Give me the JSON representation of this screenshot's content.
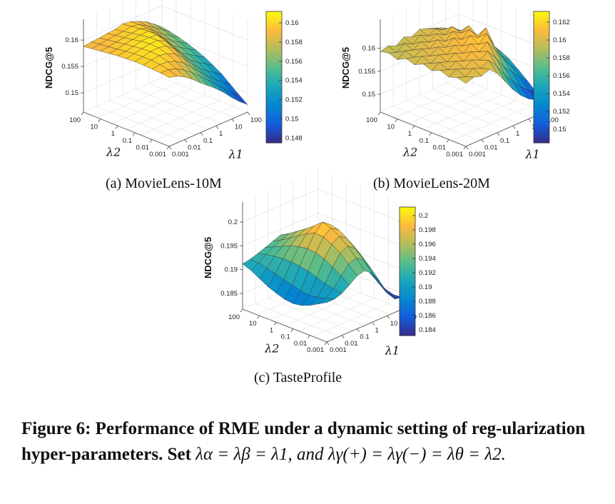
{
  "figure": {
    "caption_prefix": "Figure 6: Performance of RME under a dynamic setting of reg-ularization hyper-parameters. Set",
    "caption_math": "λα = λβ = λ1, and λγ(+) = λγ(−) = λθ = λ2."
  },
  "chart_data": [
    {
      "type": "surface",
      "subcaption": "(a)  MovieLens-10M",
      "zlabel": "NDCG@5",
      "xlabel": "λ1",
      "ylabel": "λ2",
      "x_ticks": [
        "0.001",
        "0.01",
        "0.1",
        "1",
        "10",
        "100"
      ],
      "y_ticks": [
        "100",
        "10",
        "1",
        "0.1",
        "0.01",
        "0.001"
      ],
      "z_ticks": [
        "0.15",
        "0.155",
        "0.16"
      ],
      "zlim": [
        0.148,
        0.1615
      ],
      "colorbar_ticks": [
        "0.148",
        "0.15",
        "0.152",
        "0.154",
        "0.156",
        "0.158",
        "0.16"
      ],
      "colorbar_range": [
        0.1475,
        0.1612
      ],
      "z_grid": [
        [
          0.1588,
          0.159,
          0.1591,
          0.1593,
          0.1594,
          0.1598,
          0.1596,
          0.159,
          0.1583,
          0.1572,
          0.156
        ],
        [
          0.159,
          0.1592,
          0.1594,
          0.1596,
          0.1597,
          0.16,
          0.1597,
          0.1588,
          0.1578,
          0.1568,
          0.1557
        ],
        [
          0.1592,
          0.1594,
          0.1596,
          0.1598,
          0.16,
          0.1602,
          0.1596,
          0.1584,
          0.1572,
          0.1563,
          0.1553
        ],
        [
          0.1594,
          0.1596,
          0.1599,
          0.1601,
          0.1603,
          0.1604,
          0.1593,
          0.1578,
          0.1566,
          0.1557,
          0.1548
        ],
        [
          0.1596,
          0.1598,
          0.1601,
          0.1604,
          0.1605,
          0.1603,
          0.1588,
          0.157,
          0.156,
          0.1551,
          0.1542
        ],
        [
          0.1597,
          0.16,
          0.1603,
          0.1606,
          0.1606,
          0.1598,
          0.158,
          0.1563,
          0.1553,
          0.1544,
          0.1535
        ],
        [
          0.1598,
          0.1601,
          0.1604,
          0.1605,
          0.1602,
          0.159,
          0.1572,
          0.1556,
          0.1545,
          0.1536,
          0.1526
        ],
        [
          0.1598,
          0.1601,
          0.1603,
          0.16,
          0.1594,
          0.158,
          0.1563,
          0.1548,
          0.1536,
          0.1526,
          0.1516
        ],
        [
          0.1597,
          0.1599,
          0.1598,
          0.1592,
          0.1583,
          0.1569,
          0.1554,
          0.1539,
          0.1526,
          0.1515,
          0.1503
        ],
        [
          0.1596,
          0.1596,
          0.1591,
          0.1582,
          0.1571,
          0.1558,
          0.1544,
          0.153,
          0.1515,
          0.1502,
          0.149
        ],
        [
          0.1594,
          0.159,
          0.1582,
          0.1571,
          0.1558,
          0.1546,
          0.1534,
          0.152,
          0.1504,
          0.149,
          0.1478
        ]
      ]
    },
    {
      "type": "surface",
      "subcaption": "(b)  MovieLens-20M",
      "zlabel": "NDCG@5",
      "xlabel": "λ1",
      "ylabel": "λ2",
      "x_ticks": [
        "0.001",
        "0.01",
        "0.1",
        "1",
        "10",
        "100"
      ],
      "y_ticks": [
        "100",
        "10",
        "1",
        "0.1",
        "0.01",
        "0.001"
      ],
      "z_ticks": [
        "0.15",
        "0.155",
        "0.16"
      ],
      "zlim": [
        0.148,
        0.1635
      ],
      "colorbar_ticks": [
        "0.15",
        "0.152",
        "0.154",
        "0.156",
        "0.158",
        "0.16",
        "0.162"
      ],
      "colorbar_range": [
        0.1485,
        0.1632
      ],
      "z_grid": [
        [
          0.1593,
          0.1598,
          0.159,
          0.1602,
          0.1595,
          0.1604,
          0.1598,
          0.1592,
          0.1585,
          0.1575,
          0.1566
        ],
        [
          0.1597,
          0.1591,
          0.1603,
          0.1594,
          0.1606,
          0.1597,
          0.1605,
          0.1595,
          0.1588,
          0.1577,
          0.1567
        ],
        [
          0.159,
          0.1602,
          0.1596,
          0.1607,
          0.1598,
          0.1609,
          0.1599,
          0.161,
          0.1592,
          0.158,
          0.1568
        ],
        [
          0.16,
          0.1595,
          0.1606,
          0.1599,
          0.1611,
          0.16,
          0.1614,
          0.1603,
          0.1612,
          0.1583,
          0.157
        ],
        [
          0.1594,
          0.1605,
          0.1598,
          0.161,
          0.1602,
          0.1615,
          0.1604,
          0.1618,
          0.1598,
          0.1578,
          0.1562
        ],
        [
          0.1603,
          0.1597,
          0.1608,
          0.1601,
          0.1614,
          0.1605,
          0.162,
          0.1608,
          0.1622,
          0.1572,
          0.1555
        ],
        [
          0.1596,
          0.1606,
          0.16,
          0.1612,
          0.1604,
          0.1617,
          0.1608,
          0.1625,
          0.159,
          0.156,
          0.1545
        ],
        [
          0.1604,
          0.1598,
          0.1609,
          0.1602,
          0.1615,
          0.1607,
          0.1621,
          0.1597,
          0.157,
          0.1548,
          0.153
        ],
        [
          0.1597,
          0.1607,
          0.16,
          0.1612,
          0.1604,
          0.1616,
          0.1594,
          0.1568,
          0.155,
          0.153,
          0.1515
        ],
        [
          0.1603,
          0.1598,
          0.1608,
          0.1601,
          0.1611,
          0.1592,
          0.1566,
          0.1545,
          0.1525,
          0.151,
          0.1498
        ],
        [
          0.1598,
          0.1604,
          0.1599,
          0.1606,
          0.159,
          0.1565,
          0.154,
          0.152,
          0.1505,
          0.1495,
          0.1488
        ]
      ]
    },
    {
      "type": "surface",
      "subcaption": "(c)  TasteProfile",
      "zlabel": "NDCG@5",
      "xlabel": "λ1",
      "ylabel": "λ2",
      "x_ticks": [
        "0.001",
        "0.01",
        "0.1",
        "1",
        "10",
        "100"
      ],
      "y_ticks": [
        "100",
        "10",
        "1",
        "0.1",
        "0.01",
        "0.001"
      ],
      "z_ticks": [
        "0.185",
        "0.19",
        "0.195",
        "0.2"
      ],
      "zlim": [
        0.1835,
        0.2015
      ],
      "colorbar_ticks": [
        "0.184",
        "0.186",
        "0.188",
        "0.19",
        "0.192",
        "0.194",
        "0.196",
        "0.198",
        "0.2"
      ],
      "colorbar_range": [
        0.1832,
        0.2012
      ],
      "z_grid": [
        [
          0.1912,
          0.1915,
          0.192,
          0.1926,
          0.1932,
          0.1938,
          0.1934,
          0.1928,
          0.192,
          0.191,
          0.19
        ],
        [
          0.1905,
          0.1914,
          0.1925,
          0.1934,
          0.1942,
          0.1948,
          0.1944,
          0.1936,
          0.1926,
          0.1914,
          0.1902
        ],
        [
          0.1895,
          0.191,
          0.1928,
          0.1942,
          0.1952,
          0.196,
          0.1955,
          0.1944,
          0.193,
          0.1916,
          0.19
        ],
        [
          0.1885,
          0.1905,
          0.193,
          0.195,
          0.1964,
          0.1972,
          0.1966,
          0.1952,
          0.1934,
          0.1915,
          0.1896
        ],
        [
          0.1878,
          0.19,
          0.193,
          0.1955,
          0.1975,
          0.1985,
          0.1977,
          0.1958,
          0.1935,
          0.1912,
          0.189
        ],
        [
          0.1872,
          0.1895,
          0.1928,
          0.1958,
          0.1984,
          0.2,
          0.1988,
          0.1962,
          0.1933,
          0.1905,
          0.188
        ],
        [
          0.187,
          0.189,
          0.1924,
          0.1956,
          0.1982,
          0.1994,
          0.1984,
          0.1958,
          0.1926,
          0.1895,
          0.1868
        ],
        [
          0.1873,
          0.1888,
          0.1918,
          0.195,
          0.1974,
          0.1984,
          0.1973,
          0.1948,
          0.1915,
          0.1882,
          0.1855
        ],
        [
          0.188,
          0.189,
          0.1912,
          0.194,
          0.1962,
          0.197,
          0.1958,
          0.1933,
          0.19,
          0.1866,
          0.1845
        ],
        [
          0.189,
          0.1895,
          0.1908,
          0.1928,
          0.1946,
          0.1952,
          0.194,
          0.1915,
          0.1882,
          0.1852,
          0.184
        ],
        [
          0.19,
          0.19,
          0.1905,
          0.1916,
          0.1928,
          0.1932,
          0.192,
          0.1896,
          0.1866,
          0.1845,
          0.1842
        ]
      ]
    }
  ]
}
